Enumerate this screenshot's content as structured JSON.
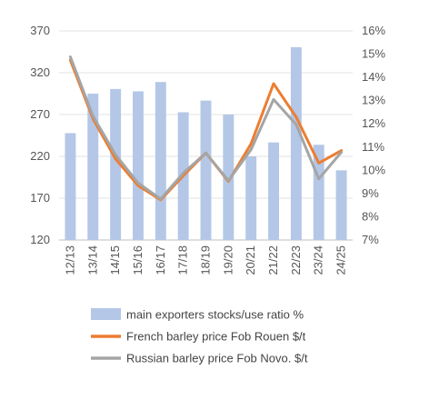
{
  "chart_data": {
    "type": "bar",
    "categories": [
      "12/13",
      "13/14",
      "14/15",
      "15/16",
      "16/17",
      "17/18",
      "18/19",
      "19/20",
      "20/21",
      "21/22",
      "22/23",
      "23/24",
      "24/25"
    ],
    "y_left": {
      "ylim": [
        120,
        370
      ],
      "ticks": [
        "370",
        "320",
        "270",
        "220",
        "170",
        "120"
      ],
      "tick_values": [
        370,
        320,
        270,
        220,
        170,
        120
      ]
    },
    "y_right": {
      "ylim": [
        7,
        16
      ],
      "ticks": [
        "16%",
        "15%",
        "14%",
        "13%",
        "12%",
        "11%",
        "10%",
        "9%",
        "8%",
        "7%"
      ],
      "tick_values": [
        16,
        15,
        14,
        13,
        12,
        11,
        10,
        9,
        8,
        7
      ]
    },
    "series": [
      {
        "name": "main exporters stocks/use ratio %",
        "kind": "bar",
        "axis": "right",
        "color": "#b4c7e7",
        "values": [
          11.6,
          13.3,
          13.5,
          13.4,
          13.8,
          12.5,
          13.0,
          12.4,
          10.6,
          11.2,
          15.3,
          11.1,
          10.0
        ]
      },
      {
        "name": "French barley price Fob Rouen $/t",
        "kind": "line",
        "axis": "left",
        "color": "#ed7d31",
        "values": [
          335,
          265,
          217,
          185,
          168,
          197,
          224,
          190,
          235,
          307,
          267,
          212,
          227
        ]
      },
      {
        "name": "Russian barley price Fob Novo. $/t",
        "kind": "line",
        "axis": "left",
        "color": "#a5a5a5",
        "values": [
          339,
          268,
          222,
          188,
          169,
          200,
          224,
          191,
          228,
          288,
          258,
          193,
          225
        ]
      }
    ]
  },
  "legend": {
    "items": [
      {
        "label": "main exporters stocks/use ratio %",
        "swatch": "bar",
        "color": "#b4c7e7"
      },
      {
        "label": "French barley price Fob Rouen $/t",
        "swatch": "line",
        "color": "#ed7d31"
      },
      {
        "label": "Russian barley price Fob Novo. $/t",
        "swatch": "line",
        "color": "#a5a5a5"
      }
    ]
  }
}
